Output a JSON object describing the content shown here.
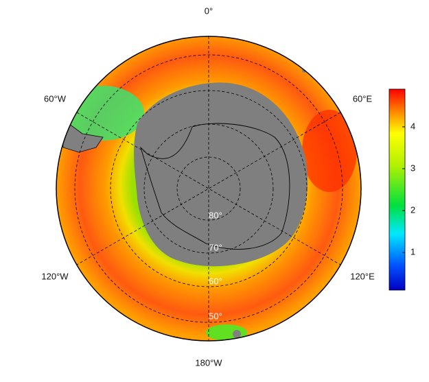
{
  "map": {
    "longitude_labels": {
      "top": "0°",
      "upper_left": "60°W",
      "upper_right": "60°E",
      "lower_left": "120°W",
      "lower_right": "120°E",
      "bottom": "180°W"
    },
    "latitude_labels": [
      "80°",
      "70°",
      "60°",
      "50°"
    ],
    "colorbar": {
      "lim": [
        0.1,
        4.9
      ],
      "ticks": [
        1,
        2,
        3,
        4
      ]
    }
  }
}
